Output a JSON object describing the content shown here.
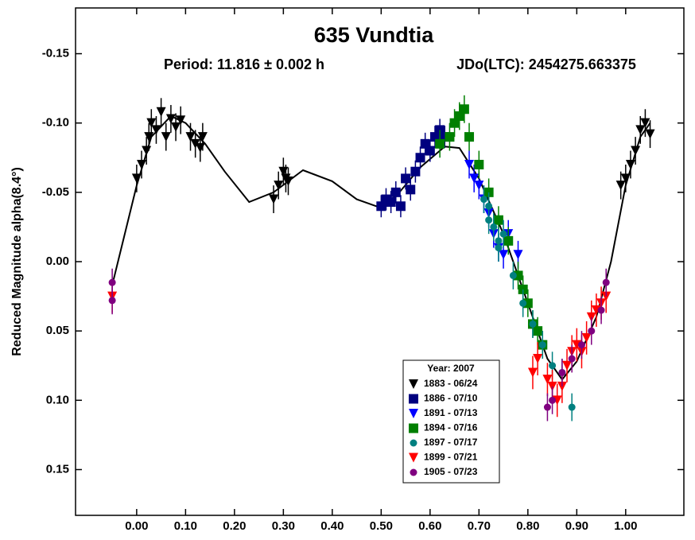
{
  "chart_data": {
    "type": "scatter",
    "title": "635 Vundtia",
    "subtitle_left": "Period: 11.816 ± 0.002 h",
    "subtitle_right": "JDo(LTC): 2454275.663375",
    "y_label": "Reduced Magnitude alpha(8.4°)",
    "xlim": [
      -0.125,
      1.119
    ],
    "ylim": [
      -0.183,
      0.183
    ],
    "invert_y": true,
    "xticks": [
      {
        "value": 0.0,
        "label": "0.00"
      },
      {
        "value": 0.1,
        "label": "0.10"
      },
      {
        "value": 0.2,
        "label": "0.20"
      },
      {
        "value": 0.3,
        "label": "0.30"
      },
      {
        "value": 0.4,
        "label": "0.40"
      },
      {
        "value": 0.5,
        "label": "0.50"
      },
      {
        "value": 0.6,
        "label": "0.60"
      },
      {
        "value": 0.7,
        "label": "0.70"
      },
      {
        "value": 0.8,
        "label": "0.80"
      },
      {
        "value": 0.9,
        "label": "0.90"
      },
      {
        "value": 1.0,
        "label": "1.00"
      }
    ],
    "yticks": [
      {
        "value": -0.15,
        "label": "-0.15"
      },
      {
        "value": -0.1,
        "label": "-0.10"
      },
      {
        "value": -0.05,
        "label": "-0.05"
      },
      {
        "value": 0.0,
        "label": "0.00"
      },
      {
        "value": 0.05,
        "label": "0.05"
      },
      {
        "value": 0.1,
        "label": "0.10"
      },
      {
        "value": 0.15,
        "label": "0.15"
      }
    ],
    "legend_title": "Year: 2007",
    "curve": {
      "color": "#000000",
      "x": [
        -0.05,
        0.0,
        0.03,
        0.07,
        0.1,
        0.14,
        0.18,
        0.23,
        0.28,
        0.34,
        0.4,
        0.45,
        0.49,
        0.53,
        0.58,
        0.63,
        0.66,
        0.7,
        0.75,
        0.8,
        0.84,
        0.87,
        0.9,
        0.94,
        0.97,
        1.0,
        1.03,
        1.05
      ],
      "y": [
        0.017,
        -0.055,
        -0.09,
        -0.105,
        -0.1,
        -0.085,
        -0.065,
        -0.043,
        -0.05,
        -0.066,
        -0.058,
        -0.045,
        -0.04,
        -0.047,
        -0.068,
        -0.083,
        -0.082,
        -0.06,
        -0.02,
        0.03,
        0.07,
        0.085,
        0.072,
        0.04,
        0.0,
        -0.055,
        -0.09,
        -0.1
      ]
    },
    "series": [
      {
        "name": "1883 - 06/24",
        "color": "#000000",
        "marker": "triangle-down",
        "error": 0.01,
        "x": [
          0.0,
          0.01,
          0.02,
          0.025,
          0.03,
          0.04,
          0.05,
          0.06,
          0.07,
          0.08,
          0.09,
          0.11,
          0.12,
          0.13,
          0.135,
          0.28,
          0.29,
          0.3,
          0.305,
          0.31,
          0.99,
          1.0,
          1.01,
          1.02,
          1.03,
          1.04,
          1.05
        ],
        "values": [
          -0.06,
          -0.07,
          -0.08,
          -0.09,
          -0.1,
          -0.095,
          -0.108,
          -0.09,
          -0.103,
          -0.097,
          -0.102,
          -0.09,
          -0.085,
          -0.082,
          -0.09,
          -0.045,
          -0.055,
          -0.065,
          -0.06,
          -0.058,
          -0.055,
          -0.06,
          -0.07,
          -0.08,
          -0.095,
          -0.1,
          -0.092
        ]
      },
      {
        "name": "1886 - 07/10",
        "color": "#00007f",
        "marker": "square",
        "error": 0.008,
        "x": [
          0.5,
          0.51,
          0.52,
          0.53,
          0.54,
          0.55,
          0.56,
          0.57,
          0.58,
          0.59,
          0.6,
          0.61,
          0.62,
          0.63
        ],
        "values": [
          -0.04,
          -0.045,
          -0.043,
          -0.05,
          -0.04,
          -0.06,
          -0.052,
          -0.065,
          -0.075,
          -0.085,
          -0.08,
          -0.09,
          -0.095,
          -0.09
        ]
      },
      {
        "name": "1891 - 07/13",
        "color": "#0000ff",
        "marker": "triangle-down",
        "error": 0.01,
        "x": [
          0.68,
          0.69,
          0.7,
          0.71,
          0.72,
          0.73,
          0.74,
          0.75,
          0.76,
          0.78
        ],
        "values": [
          -0.07,
          -0.06,
          -0.055,
          -0.045,
          -0.035,
          -0.02,
          -0.01,
          -0.005,
          -0.02,
          -0.005
        ]
      },
      {
        "name": "1894 - 07/16",
        "color": "#007f00",
        "marker": "square",
        "error": 0.01,
        "x": [
          0.62,
          0.64,
          0.65,
          0.66,
          0.67,
          0.68,
          0.7,
          0.72,
          0.74,
          0.76,
          0.78,
          0.79,
          0.8,
          0.81,
          0.82,
          0.83
        ],
        "values": [
          -0.085,
          -0.09,
          -0.1,
          -0.105,
          -0.11,
          -0.09,
          -0.07,
          -0.05,
          -0.03,
          -0.015,
          0.01,
          0.02,
          0.03,
          0.045,
          0.05,
          0.06
        ]
      },
      {
        "name": "1897 - 07/17",
        "color": "#008080",
        "marker": "circle",
        "error": 0.01,
        "x": [
          0.71,
          0.72,
          0.72,
          0.73,
          0.74,
          0.74,
          0.75,
          0.77,
          0.79,
          0.81,
          0.83,
          0.85,
          0.87,
          0.89
        ],
        "values": [
          -0.045,
          -0.04,
          -0.03,
          -0.025,
          -0.015,
          -0.01,
          -0.02,
          0.01,
          0.03,
          0.045,
          0.06,
          0.075,
          0.08,
          0.105
        ]
      },
      {
        "name": "1899 - 07/21",
        "color": "#ff0000",
        "marker": "triangle-down",
        "error": 0.012,
        "x": [
          -0.05,
          0.81,
          0.82,
          0.84,
          0.85,
          0.86,
          0.87,
          0.88,
          0.89,
          0.9,
          0.91,
          0.92,
          0.93,
          0.94,
          0.95,
          0.96
        ],
        "values": [
          0.025,
          0.08,
          0.07,
          0.085,
          0.09,
          0.1,
          0.09,
          0.075,
          0.065,
          0.06,
          0.065,
          0.055,
          0.04,
          0.035,
          0.03,
          0.025
        ]
      },
      {
        "name": "1905 - 07/23",
        "color": "#800080",
        "marker": "circle",
        "error": 0.01,
        "x": [
          -0.05,
          -0.05,
          0.84,
          0.85,
          0.87,
          0.89,
          0.91,
          0.93,
          0.95,
          0.96
        ],
        "values": [
          0.015,
          0.028,
          0.105,
          0.1,
          0.08,
          0.07,
          0.06,
          0.05,
          0.035,
          0.015
        ]
      }
    ]
  }
}
